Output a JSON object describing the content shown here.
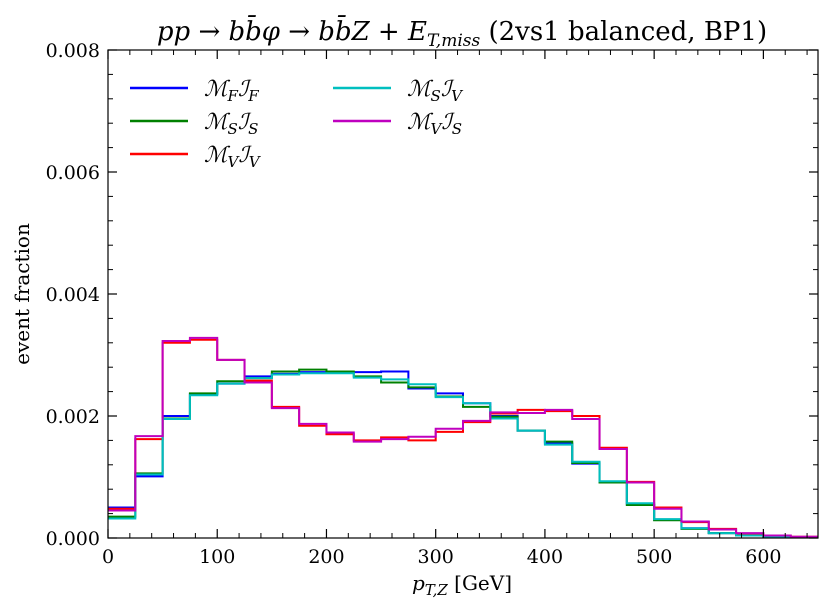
{
  "chart_data": {
    "type": "line",
    "title": "pp → bb̄φ → bb̄Z + E_T,miss (2vs1 balanced, BP1)",
    "xlabel": "p_T,Z [GeV]",
    "ylabel": "event fraction",
    "xlim": [
      0,
      650
    ],
    "ylim": [
      0,
      0.008
    ],
    "xticks": [
      "0",
      "100",
      "200",
      "300",
      "400",
      "500",
      "600"
    ],
    "yticks": [
      "0.000",
      "0.002",
      "0.004",
      "0.006",
      "0.008"
    ],
    "legend_position": "top-left",
    "bin_width": 25,
    "bin_edges": [
      0,
      25,
      50,
      75,
      100,
      125,
      150,
      175,
      200,
      225,
      250,
      275,
      300,
      325,
      350,
      375,
      400,
      425,
      450,
      475,
      500,
      525,
      550,
      575,
      600,
      625,
      650
    ],
    "series": [
      {
        "name": "M_F I_F",
        "color": "#0000ff",
        "values": [
          0.0005,
          0.00101,
          0.002,
          0.00236,
          0.00253,
          0.00265,
          0.00269,
          0.00272,
          0.00272,
          0.00272,
          0.00273,
          0.00245,
          0.00237,
          0.00221,
          0.002,
          0.00176,
          0.00155,
          0.00122,
          0.00092,
          0.00055,
          0.0003,
          0.00016,
          8e-05,
          4e-05,
          2e-05,
          1e-05
        ]
      },
      {
        "name": "M_S I_S",
        "color": "#008000",
        "values": [
          0.00035,
          0.00106,
          0.00196,
          0.00237,
          0.00257,
          0.00262,
          0.00273,
          0.00276,
          0.00273,
          0.00265,
          0.00255,
          0.00247,
          0.00232,
          0.00215,
          0.00199,
          0.00176,
          0.00158,
          0.00123,
          0.00091,
          0.00054,
          0.00029,
          0.00015,
          8e-05,
          4e-05,
          2e-05,
          1e-05
        ]
      },
      {
        "name": "M_V I_V",
        "color": "#ff0000",
        "values": [
          0.00048,
          0.00162,
          0.0032,
          0.00325,
          0.00292,
          0.00258,
          0.00215,
          0.00184,
          0.0017,
          0.0016,
          0.00165,
          0.0016,
          0.00174,
          0.0019,
          0.00204,
          0.0021,
          0.00208,
          0.002,
          0.00148,
          0.00092,
          0.0005,
          0.00026,
          0.00015,
          7e-05,
          4e-05,
          2e-05
        ]
      },
      {
        "name": "M_S I_V",
        "color": "#00bfbf",
        "values": [
          0.00032,
          0.00104,
          0.00195,
          0.00234,
          0.00253,
          0.00262,
          0.00268,
          0.0027,
          0.0027,
          0.00263,
          0.0026,
          0.00252,
          0.00231,
          0.00221,
          0.00196,
          0.00176,
          0.00153,
          0.00125,
          0.00093,
          0.00057,
          0.00031,
          0.00016,
          8e-05,
          4e-05,
          2e-05,
          1e-05
        ]
      },
      {
        "name": "M_V I_S",
        "color": "#bf00bf",
        "values": [
          0.00045,
          0.00167,
          0.00323,
          0.00328,
          0.00292,
          0.00255,
          0.00213,
          0.00187,
          0.00173,
          0.00158,
          0.00162,
          0.00166,
          0.00179,
          0.00192,
          0.00206,
          0.00205,
          0.0021,
          0.00195,
          0.00146,
          0.00091,
          0.00048,
          0.00027,
          0.00014,
          8e-05,
          4e-05,
          2e-05
        ]
      }
    ]
  }
}
